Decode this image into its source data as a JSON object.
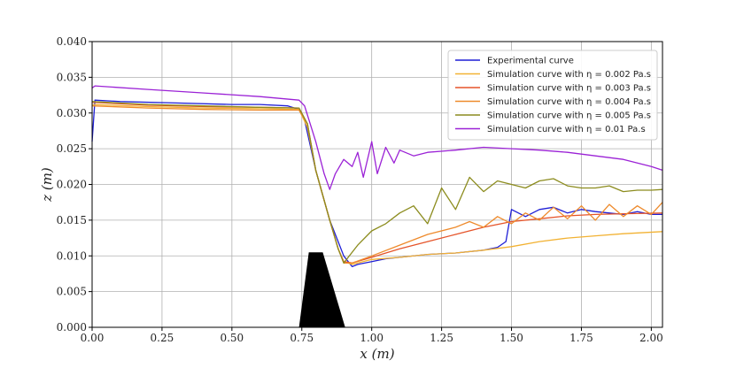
{
  "chart_data": {
    "type": "line",
    "title": "",
    "xlabel": "x (m)",
    "ylabel": "z (m)",
    "xlim": [
      0.0,
      2.04
    ],
    "ylim": [
      0.0,
      0.04
    ],
    "xticks": [
      "0.00",
      "0.25",
      "0.50",
      "0.75",
      "1.00",
      "1.25",
      "1.50",
      "1.75",
      "2.00"
    ],
    "yticks": [
      "0.000",
      "0.005",
      "0.010",
      "0.015",
      "0.020",
      "0.025",
      "0.030",
      "0.035",
      "0.040"
    ],
    "grid": true,
    "legend_position": "top-right",
    "obstacle": {
      "polygon": [
        [
          0.74,
          0.0
        ],
        [
          0.775,
          0.0105
        ],
        [
          0.825,
          0.0105
        ],
        [
          0.905,
          0.0
        ]
      ],
      "color": "#000000"
    },
    "series": [
      {
        "name": "Experimental curve",
        "color": "#1f1fd6",
        "x": [
          0.0,
          0.01,
          0.1,
          0.3,
          0.5,
          0.6,
          0.7,
          0.74,
          0.76,
          0.8,
          0.85,
          0.88,
          0.9,
          0.93,
          0.95,
          1.0,
          1.05,
          1.1,
          1.2,
          1.3,
          1.4,
          1.45,
          1.48,
          1.5,
          1.55,
          1.6,
          1.65,
          1.7,
          1.75,
          1.8,
          1.85,
          1.9,
          1.95,
          2.0,
          2.04
        ],
        "y": [
          0.026,
          0.0318,
          0.0316,
          0.0314,
          0.0312,
          0.0312,
          0.031,
          0.0305,
          0.029,
          0.022,
          0.015,
          0.012,
          0.01,
          0.0085,
          0.0088,
          0.0092,
          0.0096,
          0.0098,
          0.0102,
          0.0104,
          0.0108,
          0.0112,
          0.012,
          0.0165,
          0.0155,
          0.0165,
          0.0168,
          0.016,
          0.0165,
          0.0162,
          0.016,
          0.0158,
          0.0162,
          0.0158,
          0.0158
        ]
      },
      {
        "name": "Simulation curve with η = 0.002 Pa.s",
        "color": "#f2b233",
        "x": [
          0.0,
          0.2,
          0.4,
          0.6,
          0.74,
          0.77,
          0.8,
          0.85,
          0.88,
          0.9,
          0.93,
          1.0,
          1.1,
          1.2,
          1.3,
          1.4,
          1.5,
          1.6,
          1.7,
          1.8,
          1.9,
          2.04
        ],
        "y": [
          0.0312,
          0.0309,
          0.0307,
          0.0306,
          0.0305,
          0.028,
          0.022,
          0.015,
          0.011,
          0.0092,
          0.0088,
          0.0095,
          0.0098,
          0.0102,
          0.0104,
          0.0108,
          0.0113,
          0.012,
          0.0125,
          0.0128,
          0.0131,
          0.0134
        ]
      },
      {
        "name": "Simulation curve with η = 0.003 Pa.s",
        "color": "#e5542a",
        "x": [
          0.0,
          0.2,
          0.4,
          0.6,
          0.74,
          0.77,
          0.8,
          0.85,
          0.88,
          0.9,
          0.93,
          1.0,
          1.1,
          1.2,
          1.3,
          1.4,
          1.5,
          1.6,
          1.7,
          1.8,
          1.9,
          2.04
        ],
        "y": [
          0.0315,
          0.0311,
          0.0309,
          0.0308,
          0.0307,
          0.0285,
          0.022,
          0.015,
          0.011,
          0.0092,
          0.009,
          0.0098,
          0.011,
          0.012,
          0.013,
          0.014,
          0.0148,
          0.0152,
          0.0156,
          0.0158,
          0.0159,
          0.016
        ]
      },
      {
        "name": "Simulation curve with η = 0.004 Pa.s",
        "color": "#ee8a2b",
        "x": [
          0.0,
          0.2,
          0.4,
          0.6,
          0.74,
          0.77,
          0.8,
          0.85,
          0.88,
          0.9,
          0.93,
          1.0,
          1.1,
          1.2,
          1.3,
          1.35,
          1.4,
          1.45,
          1.5,
          1.55,
          1.6,
          1.65,
          1.7,
          1.75,
          1.8,
          1.85,
          1.9,
          1.95,
          2.0,
          2.04
        ],
        "y": [
          0.031,
          0.0307,
          0.0305,
          0.0304,
          0.0304,
          0.0285,
          0.022,
          0.015,
          0.011,
          0.009,
          0.009,
          0.01,
          0.0115,
          0.013,
          0.014,
          0.0148,
          0.014,
          0.0155,
          0.0145,
          0.016,
          0.015,
          0.0168,
          0.0152,
          0.017,
          0.015,
          0.0172,
          0.0155,
          0.017,
          0.0158,
          0.0175
        ]
      },
      {
        "name": "Simulation curve with η = 0.005 Pa.s",
        "color": "#8c8c1e",
        "x": [
          0.0,
          0.2,
          0.4,
          0.6,
          0.74,
          0.77,
          0.8,
          0.85,
          0.88,
          0.9,
          0.95,
          1.0,
          1.05,
          1.1,
          1.15,
          1.2,
          1.25,
          1.3,
          1.35,
          1.4,
          1.45,
          1.5,
          1.55,
          1.6,
          1.65,
          1.7,
          1.75,
          1.8,
          1.85,
          1.9,
          1.95,
          2.0,
          2.04
        ],
        "y": [
          0.0316,
          0.0312,
          0.031,
          0.0308,
          0.0307,
          0.0285,
          0.022,
          0.015,
          0.011,
          0.009,
          0.0115,
          0.0135,
          0.0145,
          0.016,
          0.017,
          0.0145,
          0.0195,
          0.0165,
          0.021,
          0.019,
          0.0205,
          0.02,
          0.0195,
          0.0205,
          0.0208,
          0.0198,
          0.0195,
          0.0195,
          0.0198,
          0.019,
          0.0192,
          0.0192,
          0.0193
        ]
      },
      {
        "name": "Simulation curve with η = 0.01 Pa.s",
        "color": "#9b22d6",
        "x": [
          0.0,
          0.01,
          0.2,
          0.4,
          0.6,
          0.74,
          0.76,
          0.8,
          0.83,
          0.85,
          0.87,
          0.9,
          0.93,
          0.95,
          0.97,
          1.0,
          1.02,
          1.05,
          1.08,
          1.1,
          1.15,
          1.2,
          1.3,
          1.4,
          1.5,
          1.6,
          1.7,
          1.8,
          1.9,
          2.0,
          2.04
        ],
        "y": [
          0.0335,
          0.0338,
          0.0333,
          0.0328,
          0.0323,
          0.0318,
          0.031,
          0.026,
          0.0215,
          0.0193,
          0.0215,
          0.0235,
          0.0225,
          0.0245,
          0.021,
          0.026,
          0.0215,
          0.0252,
          0.023,
          0.0248,
          0.024,
          0.0245,
          0.0248,
          0.0252,
          0.025,
          0.0248,
          0.0245,
          0.024,
          0.0235,
          0.0225,
          0.022
        ]
      }
    ]
  }
}
